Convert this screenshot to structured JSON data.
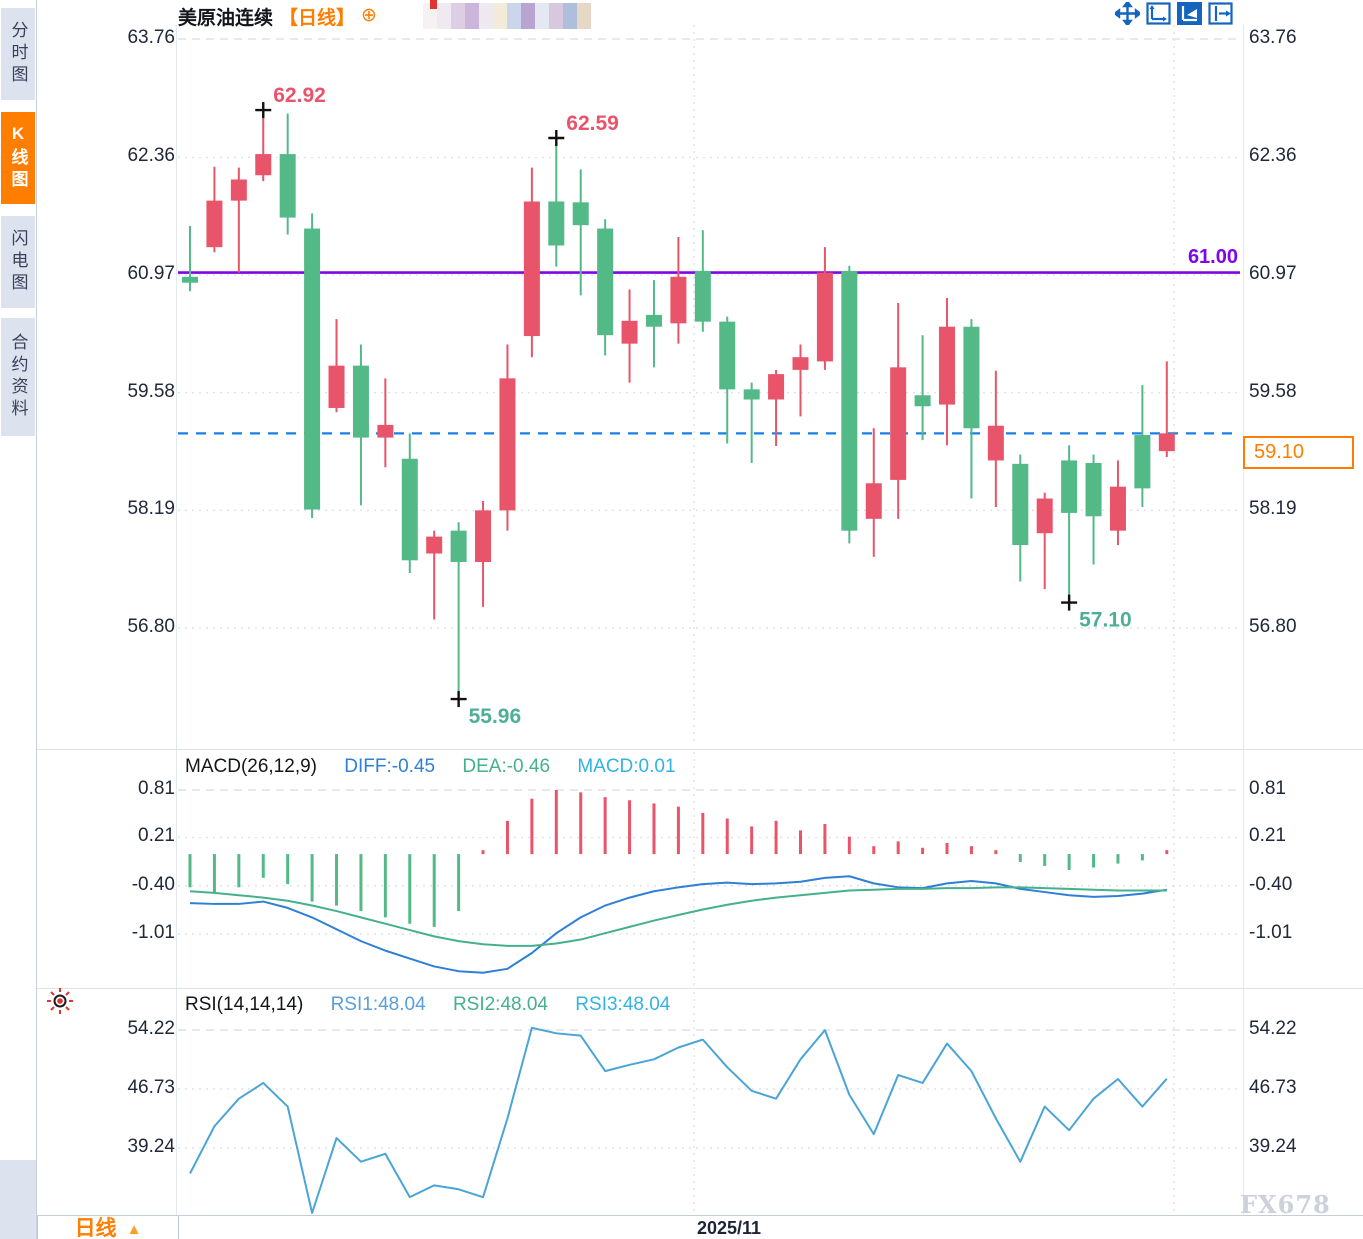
{
  "sidebar": {
    "items": [
      {
        "label": "分时图",
        "active": false
      },
      {
        "label": "K线图",
        "active": true
      },
      {
        "label": "闪电图",
        "active": false
      },
      {
        "label": "合约资料",
        "active": false
      }
    ]
  },
  "header": {
    "title": "美原油连续",
    "period_tag": "【日线】",
    "overlay_icon_glyph": "⊕",
    "blur_colors": [
      "#f6f2f4",
      "#efe9f1",
      "#dccfe5",
      "#cbb6da",
      "#eee9ef",
      "#f2ebd9",
      "#cbd6ec",
      "#b7a5cf",
      "#e3e8f2",
      "#d8c8df",
      "#aebedb",
      "#e6d7c7"
    ],
    "toolbar": [
      {
        "name": "crosshair-pan",
        "active": false
      },
      {
        "name": "axis-fit",
        "active": false
      },
      {
        "name": "annotate-tool",
        "active": true
      },
      {
        "name": "scroll-right",
        "active": false
      }
    ]
  },
  "macd_header": {
    "name": "MACD(26,12,9)",
    "diff_label": "DIFF:-0.45",
    "dea_label": "DEA:-0.46",
    "macd_label": "MACD:0.01"
  },
  "rsi_header": {
    "name": "RSI(14,14,14)",
    "rsi1_label": "RSI1:48.04",
    "rsi2_label": "RSI2:48.04",
    "rsi3_label": "RSI3:48.04"
  },
  "price_labels": {
    "hline_label": "61.00",
    "current_price": "59.10"
  },
  "bottom_bar": {
    "period_label": "日线",
    "arrow_glyph": "▲",
    "date_label": "2025/11",
    "watermark": "FX678"
  },
  "colors": {
    "up": "#e8546a",
    "down": "#53b987",
    "purple_line": "#7e05e8",
    "dashed_line": "#1680e8",
    "diff_line": "#2e7fd6",
    "dea_line": "#45b08c",
    "macd_value": "#31b3e6",
    "rsi_line": "#4aa5d6",
    "rsi1": "#5a9fd8",
    "grid": "#dfe2e8",
    "high_label": "#e8546a",
    "low_label": "#4fae96",
    "accent_orange": "#ff7e00",
    "marker": "#111111"
  },
  "chart_data": [
    {
      "type": "candlestick",
      "title": "美原油连续【日线】",
      "ylabel": "price",
      "y_ticks": [
        63.76,
        62.36,
        60.97,
        59.58,
        58.19,
        56.8
      ],
      "ylim": [
        63.76,
        56.8
      ],
      "grid": true,
      "x_axis_label": "2025/11",
      "hlines": [
        {
          "value": 61.0,
          "style": "solid",
          "label": "61.00"
        },
        {
          "value": 59.1,
          "style": "dashed",
          "label": "59.10"
        }
      ],
      "annotations": [
        {
          "text": "62.92",
          "index": 3,
          "price": 62.92,
          "kind": "high"
        },
        {
          "text": "62.59",
          "index": 15,
          "price": 62.59,
          "kind": "high"
        },
        {
          "text": "55.96",
          "index": 11,
          "price": 55.96,
          "kind": "low"
        },
        {
          "text": "57.10",
          "index": 36,
          "price": 57.1,
          "kind": "low"
        }
      ],
      "candles": [
        {
          "o": 60.95,
          "h": 61.55,
          "l": 60.78,
          "c": 60.88,
          "dir": "down"
        },
        {
          "o": 61.3,
          "h": 62.25,
          "l": 61.24,
          "c": 61.85,
          "dir": "up"
        },
        {
          "o": 61.85,
          "h": 62.24,
          "l": 61.0,
          "c": 62.1,
          "dir": "up"
        },
        {
          "o": 62.15,
          "h": 62.92,
          "l": 62.08,
          "c": 62.4,
          "dir": "up"
        },
        {
          "o": 62.4,
          "h": 62.88,
          "l": 61.45,
          "c": 61.65,
          "dir": "down"
        },
        {
          "o": 61.52,
          "h": 61.7,
          "l": 58.1,
          "c": 58.2,
          "dir": "down"
        },
        {
          "o": 59.4,
          "h": 60.45,
          "l": 59.35,
          "c": 59.9,
          "dir": "up"
        },
        {
          "o": 59.9,
          "h": 60.15,
          "l": 58.25,
          "c": 59.05,
          "dir": "down"
        },
        {
          "o": 59.05,
          "h": 59.75,
          "l": 58.7,
          "c": 59.2,
          "dir": "up"
        },
        {
          "o": 58.8,
          "h": 59.1,
          "l": 57.45,
          "c": 57.6,
          "dir": "down"
        },
        {
          "o": 57.68,
          "h": 57.95,
          "l": 56.9,
          "c": 57.88,
          "dir": "up"
        },
        {
          "o": 57.95,
          "h": 58.05,
          "l": 55.96,
          "c": 57.58,
          "dir": "down"
        },
        {
          "o": 57.58,
          "h": 58.3,
          "l": 57.05,
          "c": 58.19,
          "dir": "up"
        },
        {
          "o": 58.19,
          "h": 60.15,
          "l": 57.95,
          "c": 59.75,
          "dir": "up"
        },
        {
          "o": 60.25,
          "h": 62.24,
          "l": 60.0,
          "c": 61.84,
          "dir": "up"
        },
        {
          "o": 61.84,
          "h": 62.59,
          "l": 61.07,
          "c": 61.32,
          "dir": "down"
        },
        {
          "o": 61.83,
          "h": 62.22,
          "l": 60.73,
          "c": 61.56,
          "dir": "down"
        },
        {
          "o": 61.52,
          "h": 61.63,
          "l": 60.02,
          "c": 60.26,
          "dir": "down"
        },
        {
          "o": 60.16,
          "h": 60.8,
          "l": 59.7,
          "c": 60.43,
          "dir": "up"
        },
        {
          "o": 60.5,
          "h": 60.91,
          "l": 59.88,
          "c": 60.36,
          "dir": "down"
        },
        {
          "o": 60.4,
          "h": 61.42,
          "l": 60.16,
          "c": 60.95,
          "dir": "up"
        },
        {
          "o": 61.02,
          "h": 61.5,
          "l": 60.3,
          "c": 60.42,
          "dir": "down"
        },
        {
          "o": 60.42,
          "h": 60.48,
          "l": 58.98,
          "c": 59.62,
          "dir": "down"
        },
        {
          "o": 59.62,
          "h": 59.7,
          "l": 58.75,
          "c": 59.5,
          "dir": "down"
        },
        {
          "o": 59.5,
          "h": 59.85,
          "l": 58.95,
          "c": 59.8,
          "dir": "up"
        },
        {
          "o": 59.85,
          "h": 60.15,
          "l": 59.3,
          "c": 60.0,
          "dir": "up"
        },
        {
          "o": 59.95,
          "h": 61.3,
          "l": 59.85,
          "c": 61.0,
          "dir": "up"
        },
        {
          "o": 61.02,
          "h": 61.08,
          "l": 57.8,
          "c": 57.95,
          "dir": "down"
        },
        {
          "o": 58.09,
          "h": 59.16,
          "l": 57.64,
          "c": 58.51,
          "dir": "up"
        },
        {
          "o": 58.55,
          "h": 60.64,
          "l": 58.09,
          "c": 59.88,
          "dir": "up"
        },
        {
          "o": 59.55,
          "h": 60.26,
          "l": 59.02,
          "c": 59.42,
          "dir": "down"
        },
        {
          "o": 59.44,
          "h": 60.7,
          "l": 58.96,
          "c": 60.36,
          "dir": "up"
        },
        {
          "o": 60.36,
          "h": 60.45,
          "l": 58.33,
          "c": 59.16,
          "dir": "down"
        },
        {
          "o": 58.78,
          "h": 59.84,
          "l": 58.23,
          "c": 59.19,
          "dir": "up"
        },
        {
          "o": 58.74,
          "h": 58.85,
          "l": 57.35,
          "c": 57.78,
          "dir": "down"
        },
        {
          "o": 57.92,
          "h": 58.4,
          "l": 57.26,
          "c": 58.33,
          "dir": "up"
        },
        {
          "o": 58.78,
          "h": 58.96,
          "l": 57.1,
          "c": 58.16,
          "dir": "down"
        },
        {
          "o": 58.75,
          "h": 58.85,
          "l": 57.55,
          "c": 58.12,
          "dir": "down"
        },
        {
          "o": 57.95,
          "h": 58.78,
          "l": 57.78,
          "c": 58.47,
          "dir": "up"
        },
        {
          "o": 59.08,
          "h": 59.67,
          "l": 58.23,
          "c": 58.45,
          "dir": "down"
        },
        {
          "o": 58.89,
          "h": 59.95,
          "l": 58.82,
          "c": 59.1,
          "dir": "up"
        }
      ]
    },
    {
      "type": "bar",
      "name": "MACD",
      "params": "26,12,9",
      "diff_value": -0.45,
      "dea_value": -0.46,
      "macd_value": 0.01,
      "y_ticks": [
        0.81,
        0.21,
        -0.4,
        -1.01
      ],
      "histogram": [
        -0.42,
        -0.5,
        -0.42,
        -0.3,
        -0.38,
        -0.6,
        -0.65,
        -0.72,
        -0.8,
        -0.88,
        -0.92,
        -0.72,
        0.05,
        0.42,
        0.7,
        0.81,
        0.78,
        0.72,
        0.68,
        0.64,
        0.6,
        0.52,
        0.45,
        0.35,
        0.42,
        0.3,
        0.38,
        0.22,
        0.1,
        0.16,
        0.08,
        0.14,
        0.1,
        0.05,
        -0.1,
        -0.15,
        -0.2,
        -0.17,
        -0.12,
        -0.08,
        0.05
      ],
      "series": [
        {
          "name": "DIFF",
          "values": [
            -0.62,
            -0.63,
            -0.63,
            -0.6,
            -0.68,
            -0.8,
            -0.95,
            -1.1,
            -1.22,
            -1.32,
            -1.42,
            -1.48,
            -1.5,
            -1.45,
            -1.25,
            -1.0,
            -0.8,
            -0.65,
            -0.55,
            -0.47,
            -0.42,
            -0.38,
            -0.36,
            -0.38,
            -0.37,
            -0.35,
            -0.3,
            -0.28,
            -0.37,
            -0.42,
            -0.43,
            -0.37,
            -0.34,
            -0.37,
            -0.44,
            -0.48,
            -0.52,
            -0.54,
            -0.53,
            -0.5,
            -0.45
          ]
        },
        {
          "name": "DEA",
          "values": [
            -0.47,
            -0.49,
            -0.52,
            -0.55,
            -0.59,
            -0.65,
            -0.72,
            -0.8,
            -0.88,
            -0.96,
            -1.04,
            -1.1,
            -1.14,
            -1.16,
            -1.16,
            -1.13,
            -1.08,
            -1.0,
            -0.92,
            -0.84,
            -0.77,
            -0.7,
            -0.64,
            -0.59,
            -0.55,
            -0.52,
            -0.49,
            -0.46,
            -0.45,
            -0.44,
            -0.44,
            -0.43,
            -0.43,
            -0.42,
            -0.42,
            -0.43,
            -0.44,
            -0.45,
            -0.46,
            -0.46,
            -0.46
          ]
        }
      ]
    },
    {
      "type": "line",
      "name": "RSI",
      "params": "14,14,14",
      "rsi1_value": 48.04,
      "rsi2_value": 48.04,
      "rsi3_value": 48.04,
      "y_ticks": [
        54.22,
        46.73,
        39.24
      ],
      "values": [
        36,
        42,
        45.5,
        47.5,
        44.5,
        30.5,
        40.5,
        37.5,
        38.5,
        33,
        34.5,
        34,
        33,
        43,
        54.5,
        53.8,
        53.5,
        49,
        49.8,
        50.5,
        52,
        53,
        49.5,
        46.5,
        45.5,
        50.5,
        54.2,
        46,
        41,
        48.5,
        47.5,
        52.5,
        49,
        43,
        37.5,
        44.5,
        41.5,
        45.5,
        48,
        44.5,
        48.04
      ]
    }
  ]
}
